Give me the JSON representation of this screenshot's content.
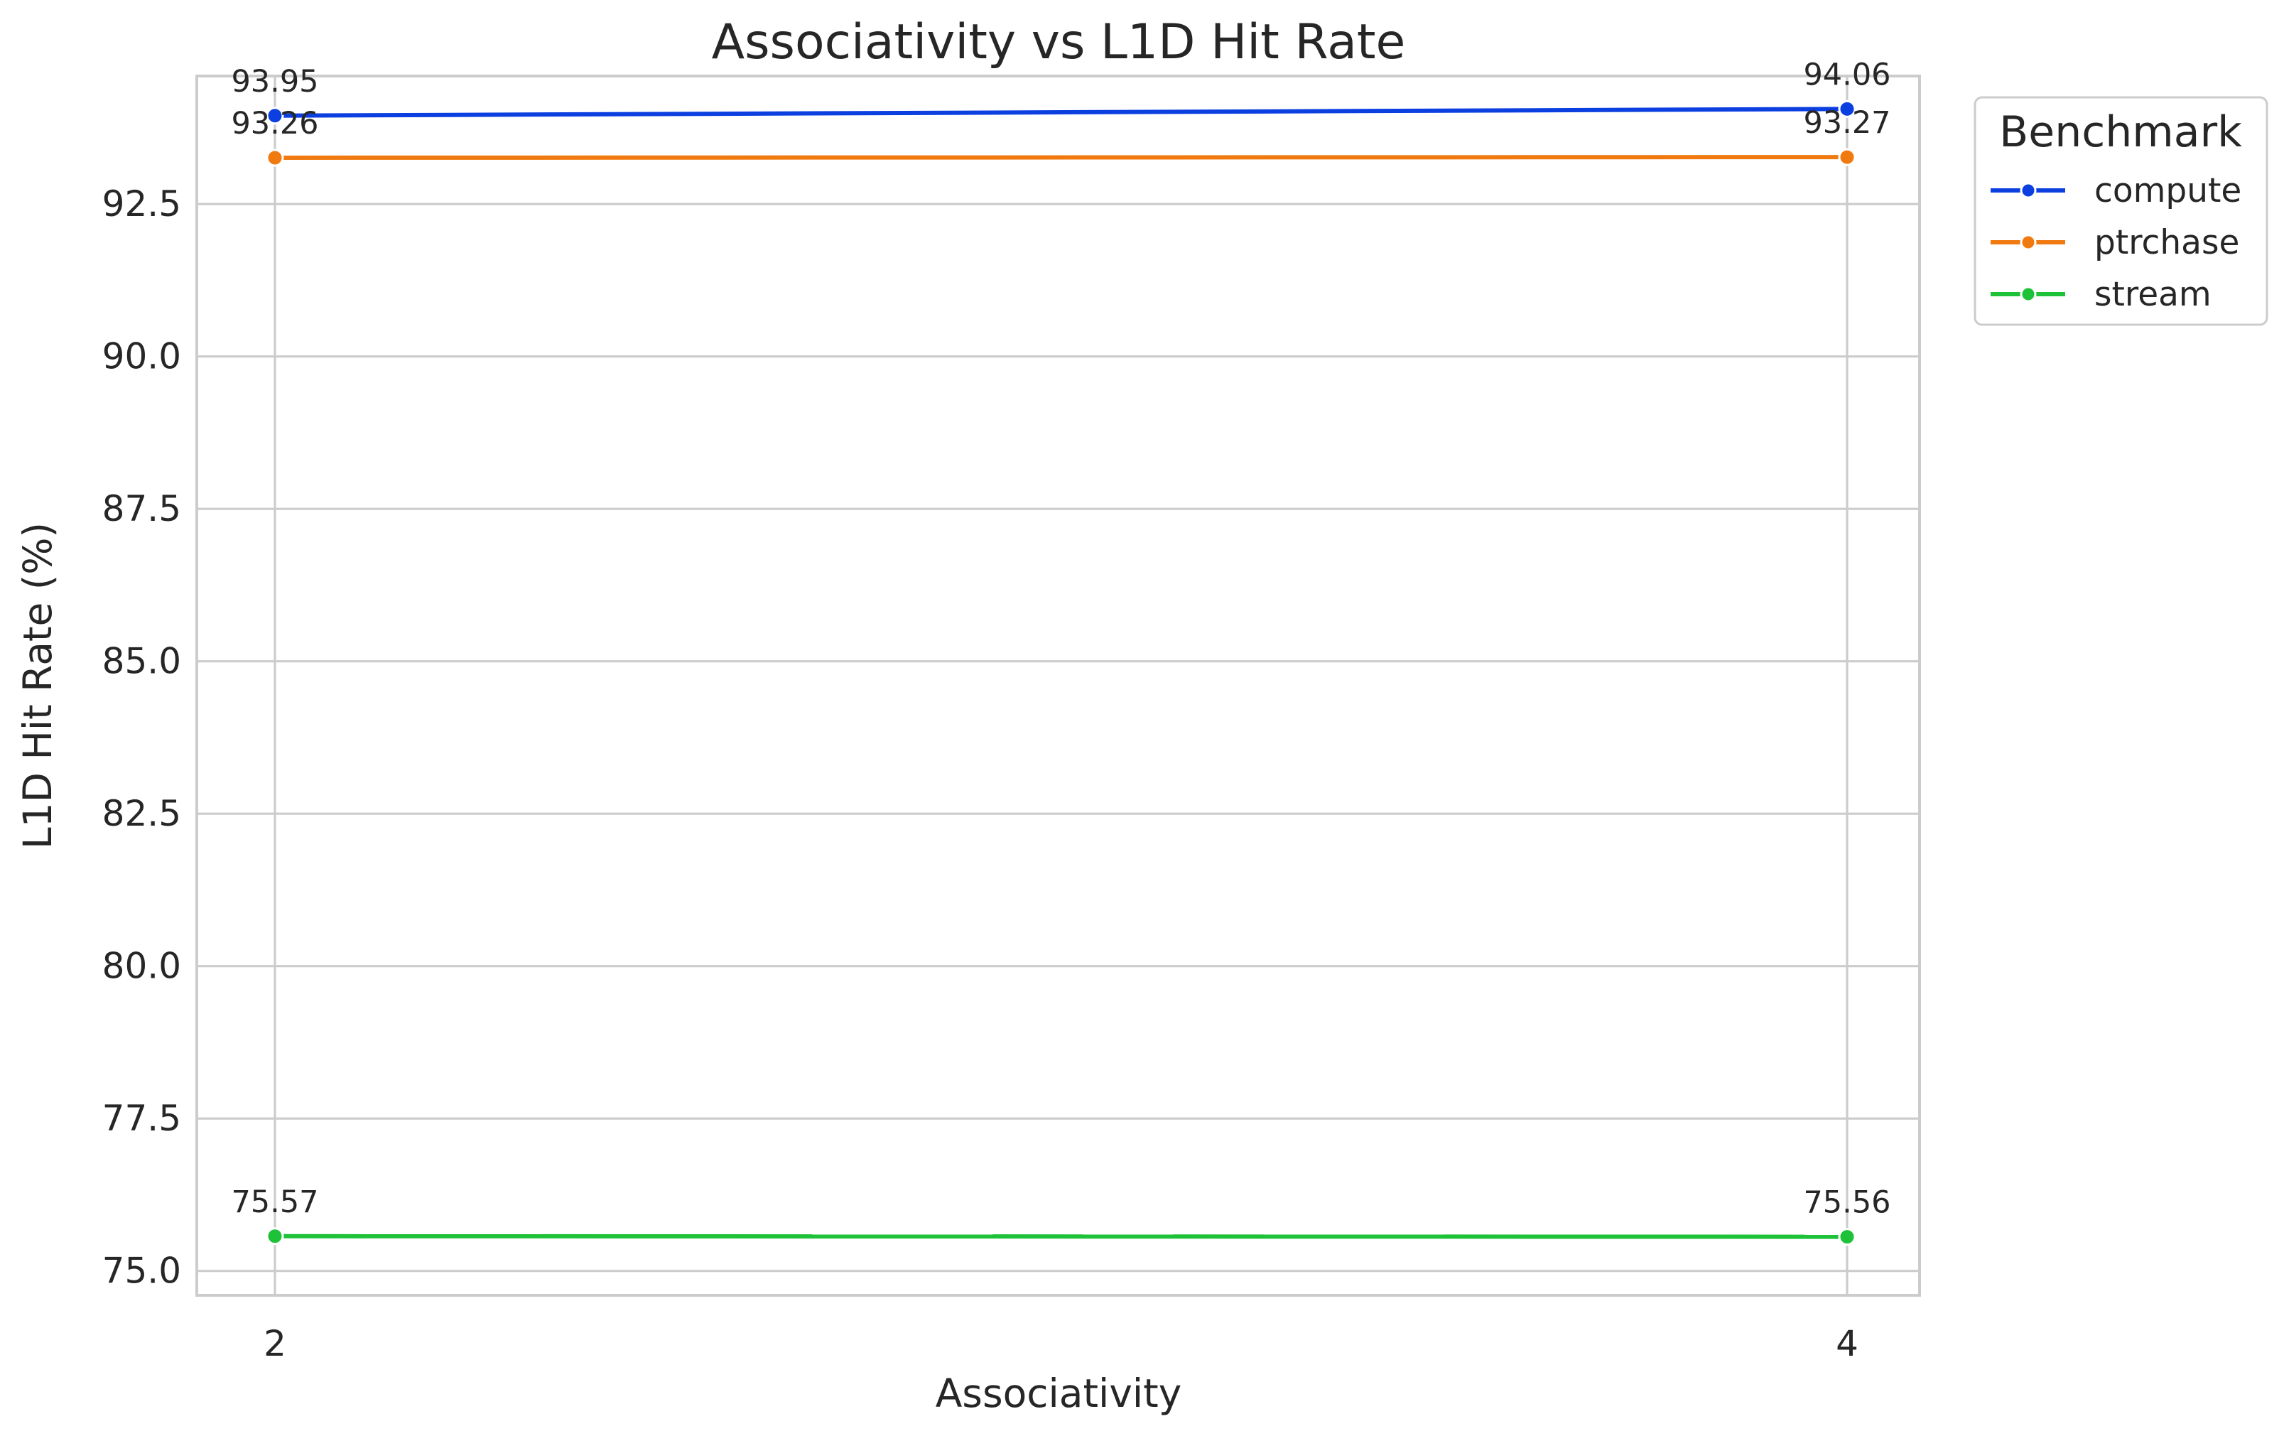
{
  "chart_data": {
    "type": "line",
    "title": "Associativity vs L1D Hit Rate",
    "xlabel": "Associativity",
    "ylabel": "L1D Hit Rate (%)",
    "x": [
      2,
      4
    ],
    "x_tick_labels": [
      "2",
      "4"
    ],
    "ylim": [
      74.6,
      94.6
    ],
    "y_ticks": [
      75.0,
      77.5,
      80.0,
      82.5,
      85.0,
      87.5,
      90.0,
      92.5
    ],
    "y_tick_labels": [
      "75.0",
      "77.5",
      "80.0",
      "82.5",
      "85.0",
      "87.5",
      "90.0",
      "92.5"
    ],
    "grid": true,
    "legend": {
      "title": "Benchmark",
      "placement": "outside-upper-right"
    },
    "series": [
      {
        "name": "compute",
        "color": "#0b3fe0",
        "values": [
          93.95,
          94.06
        ],
        "labels": [
          "93.95",
          "94.06"
        ]
      },
      {
        "name": "ptrchase",
        "color": "#f07a10",
        "values": [
          93.26,
          93.27
        ],
        "labels": [
          "93.26",
          "93.27"
        ]
      },
      {
        "name": "stream",
        "color": "#1ec238",
        "values": [
          75.57,
          75.56
        ],
        "labels": [
          "75.57",
          "75.56"
        ]
      }
    ]
  }
}
